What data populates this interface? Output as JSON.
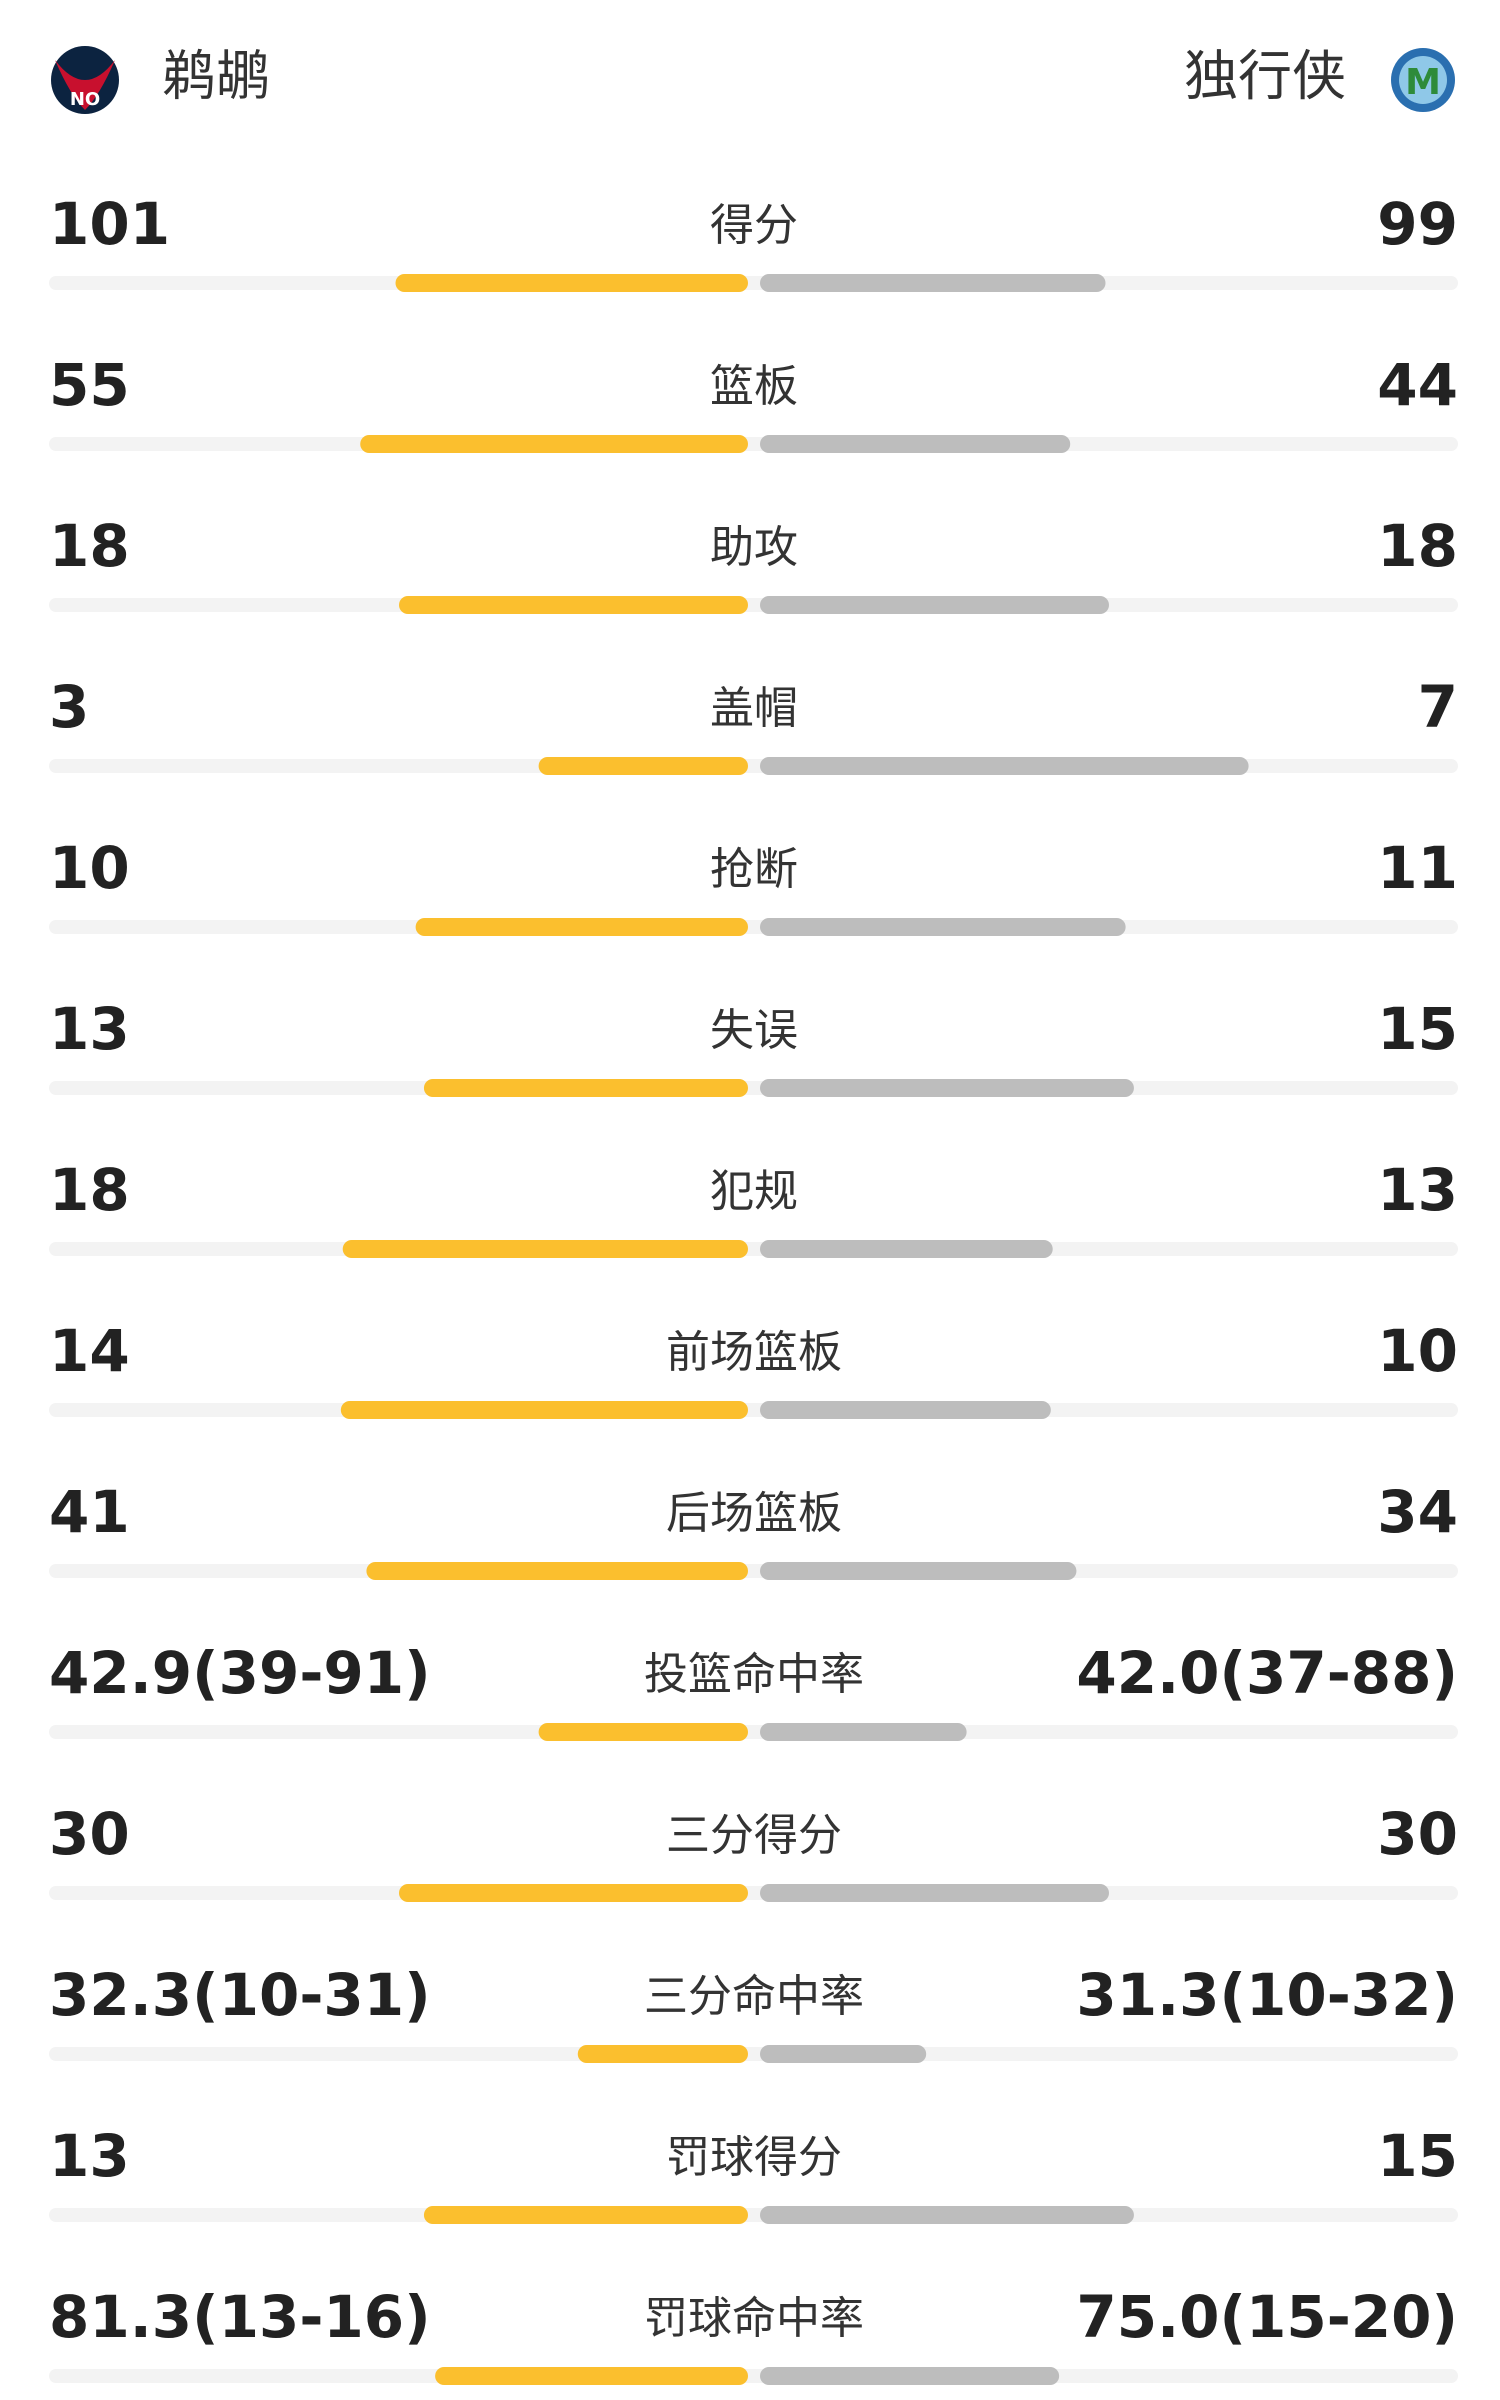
{
  "header": {
    "home_team": "鹈鹕",
    "away_team": "独行侠"
  },
  "stats": [
    {
      "label": "得分",
      "home": 101,
      "away": 99
    },
    {
      "label": "篮板",
      "home": 55,
      "away": 44
    },
    {
      "label": "助攻",
      "home": 18,
      "away": 18
    },
    {
      "label": "盖帽",
      "home": 3,
      "away": 7
    },
    {
      "label": "抢断",
      "home": 10,
      "away": 11
    },
    {
      "label": "失误",
      "home": 13,
      "away": 15
    },
    {
      "label": "犯规",
      "home": 18,
      "away": 13
    },
    {
      "label": "前场篮板",
      "home": 14,
      "away": 10
    },
    {
      "label": "后场篮板",
      "home": 41,
      "away": 34
    },
    {
      "label": "投篮命中率",
      "home": "42.9(39-91)",
      "away": "42.0(37-88)"
    },
    {
      "label": "三分得分",
      "home": 30,
      "away": 30
    },
    {
      "label": "三分命中率",
      "home": "32.3(10-31)",
      "away": "31.3(10-32)"
    },
    {
      "label": "罚球得分",
      "home": 13,
      "away": 15
    },
    {
      "label": "罚球命中率",
      "home": "81.3(13-16)",
      "away": "75.0(15-20)"
    }
  ]
}
